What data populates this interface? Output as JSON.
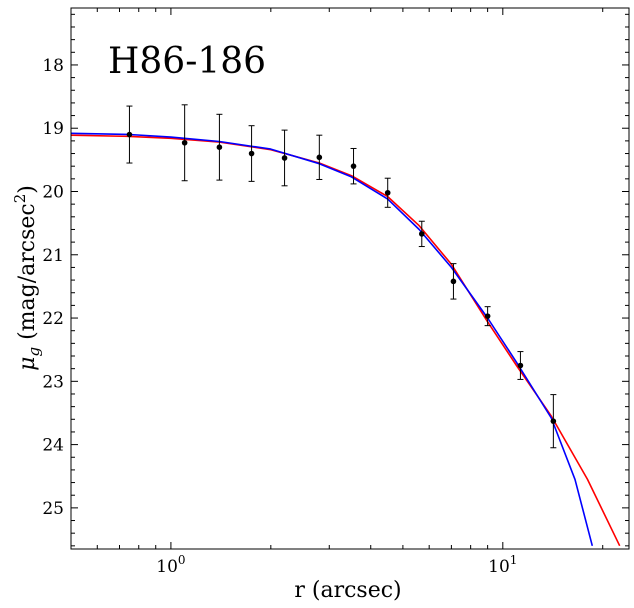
{
  "chart_data": {
    "type": "scatter",
    "title": "H86-186",
    "xlabel": "r (arcsec)",
    "ylabel_main": "μ",
    "ylabel_sub": "g",
    "ylabel_rest": " (mag/arcsec",
    "ylabel_sup": "2",
    "ylabel_end": ")",
    "x_scale": "log",
    "xlim": [
      0.5,
      24
    ],
    "ylim": [
      25.65,
      17.1
    ],
    "y_inverted": true,
    "grid": false,
    "x_major_ticks": [
      {
        "value": 1,
        "base": "10",
        "exp": "0"
      },
      {
        "value": 10,
        "base": "10",
        "exp": "1"
      }
    ],
    "y_ticks": [
      "18",
      "19",
      "20",
      "21",
      "22",
      "23",
      "24",
      "25"
    ],
    "points": [
      {
        "x": 0.75,
        "y": 19.1,
        "err": 0.45
      },
      {
        "x": 1.1,
        "y": 19.23,
        "err": 0.6
      },
      {
        "x": 1.4,
        "y": 19.3,
        "err": 0.52
      },
      {
        "x": 1.75,
        "y": 19.4,
        "err": 0.44
      },
      {
        "x": 2.2,
        "y": 19.47,
        "err": 0.44
      },
      {
        "x": 2.8,
        "y": 19.46,
        "err": 0.35
      },
      {
        "x": 3.55,
        "y": 19.6,
        "err": 0.28
      },
      {
        "x": 4.5,
        "y": 20.02,
        "err": 0.23
      },
      {
        "x": 5.7,
        "y": 20.67,
        "err": 0.2
      },
      {
        "x": 7.1,
        "y": 21.42,
        "err": 0.28
      },
      {
        "x": 9.0,
        "y": 21.97,
        "err": 0.15
      },
      {
        "x": 11.3,
        "y": 22.75,
        "err": 0.22
      },
      {
        "x": 14.2,
        "y": 23.63,
        "err": 0.42
      }
    ],
    "series": [
      {
        "color": "#ff0000",
        "x": [
          0.5,
          0.75,
          1,
          1.4,
          2,
          2.8,
          3.5,
          4.5,
          5.6,
          7,
          9,
          11,
          14,
          18,
          22.5
        ],
        "y": [
          19.11,
          19.13,
          19.16,
          19.22,
          19.34,
          19.55,
          19.75,
          20.08,
          20.54,
          21.15,
          22.06,
          22.75,
          23.55,
          24.55,
          25.6
        ]
      },
      {
        "color": "#0000ff",
        "x": [
          0.5,
          0.75,
          1,
          1.4,
          2,
          2.8,
          3.5,
          4.5,
          5.6,
          7,
          9,
          11,
          14,
          16.5,
          18.6
        ],
        "y": [
          19.08,
          19.1,
          19.14,
          19.21,
          19.33,
          19.56,
          19.77,
          20.12,
          20.6,
          21.2,
          22.0,
          22.7,
          23.58,
          24.55,
          25.6
        ]
      }
    ]
  }
}
